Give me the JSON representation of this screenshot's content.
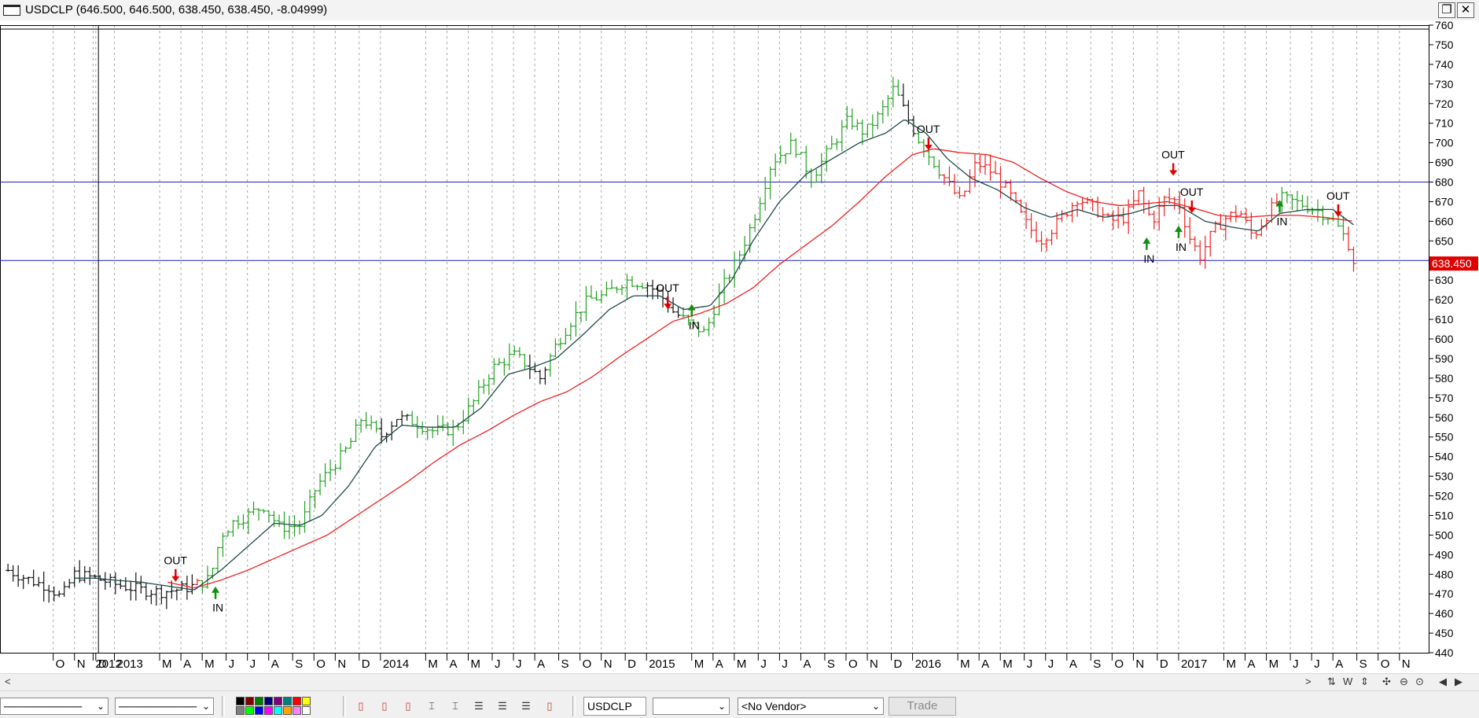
{
  "window": {
    "title": "USDCLP (646.500, 646.500, 638.450, 638.450, -8.04999)",
    "restore_glyph": "❐",
    "close_glyph": "✕"
  },
  "chart_data": {
    "type": "ohlc",
    "symbol": "USDCLP",
    "timeframe": "weekly",
    "ylim": [
      440,
      760
    ],
    "yticks": [
      440,
      450,
      460,
      470,
      480,
      490,
      500,
      510,
      520,
      530,
      540,
      550,
      560,
      570,
      580,
      590,
      600,
      610,
      620,
      630,
      640,
      650,
      660,
      670,
      680,
      690,
      700,
      710,
      720,
      730,
      740,
      750,
      760
    ],
    "last_price_label": "638.450",
    "last_price": 638.45,
    "xaxis_labels": [
      {
        "label": "2012",
        "x": 2012.92
      },
      {
        "label": "O",
        "x": 2012.77
      },
      {
        "label": "N",
        "x": 2012.85
      },
      {
        "label": "D",
        "x": 2012.93
      },
      {
        "label": "2013",
        "x": 2013.0
      },
      {
        "label": "M",
        "x": 2013.17
      },
      {
        "label": "A",
        "x": 2013.25
      },
      {
        "label": "M",
        "x": 2013.33
      },
      {
        "label": "J",
        "x": 2013.42
      },
      {
        "label": "J",
        "x": 2013.5
      },
      {
        "label": "A",
        "x": 2013.58
      },
      {
        "label": "S",
        "x": 2013.67
      },
      {
        "label": "O",
        "x": 2013.75
      },
      {
        "label": "N",
        "x": 2013.83
      },
      {
        "label": "D",
        "x": 2013.92
      },
      {
        "label": "2014",
        "x": 2014.0
      },
      {
        "label": "M",
        "x": 2014.17
      },
      {
        "label": "A",
        "x": 2014.25
      },
      {
        "label": "M",
        "x": 2014.33
      },
      {
        "label": "J",
        "x": 2014.42
      },
      {
        "label": "J",
        "x": 2014.5
      },
      {
        "label": "A",
        "x": 2014.58
      },
      {
        "label": "S",
        "x": 2014.67
      },
      {
        "label": "O",
        "x": 2014.75
      },
      {
        "label": "N",
        "x": 2014.83
      },
      {
        "label": "D",
        "x": 2014.92
      },
      {
        "label": "2015",
        "x": 2015.0
      },
      {
        "label": "M",
        "x": 2015.17
      },
      {
        "label": "A",
        "x": 2015.25
      },
      {
        "label": "M",
        "x": 2015.33
      },
      {
        "label": "J",
        "x": 2015.42
      },
      {
        "label": "J",
        "x": 2015.5
      },
      {
        "label": "A",
        "x": 2015.58
      },
      {
        "label": "S",
        "x": 2015.67
      },
      {
        "label": "O",
        "x": 2015.75
      },
      {
        "label": "N",
        "x": 2015.83
      },
      {
        "label": "D",
        "x": 2015.92
      },
      {
        "label": "2016",
        "x": 2016.0
      },
      {
        "label": "M",
        "x": 2016.17
      },
      {
        "label": "A",
        "x": 2016.25
      },
      {
        "label": "M",
        "x": 2016.33
      },
      {
        "label": "J",
        "x": 2016.42
      },
      {
        "label": "J",
        "x": 2016.5
      },
      {
        "label": "A",
        "x": 2016.58
      },
      {
        "label": "S",
        "x": 2016.67
      },
      {
        "label": "O",
        "x": 2016.75
      },
      {
        "label": "N",
        "x": 2016.83
      },
      {
        "label": "D",
        "x": 2016.92
      },
      {
        "label": "2017",
        "x": 2017.0
      },
      {
        "label": "M",
        "x": 2017.17
      },
      {
        "label": "A",
        "x": 2017.25
      },
      {
        "label": "M",
        "x": 2017.33
      },
      {
        "label": "J",
        "x": 2017.42
      },
      {
        "label": "J",
        "x": 2017.5
      },
      {
        "label": "A",
        "x": 2017.58
      },
      {
        "label": "S",
        "x": 2017.67
      },
      {
        "label": "O",
        "x": 2017.75
      },
      {
        "label": "N",
        "x": 2017.83
      }
    ],
    "close_keypoints": [
      [
        2012.6,
        482
      ],
      [
        2012.7,
        476
      ],
      [
        2012.75,
        474
      ],
      [
        2012.8,
        468
      ],
      [
        2012.85,
        480
      ],
      [
        2012.93,
        478
      ],
      [
        2013.0,
        475
      ],
      [
        2013.1,
        472
      ],
      [
        2013.17,
        471
      ],
      [
        2013.23,
        472
      ],
      [
        2013.3,
        474
      ],
      [
        2013.36,
        478
      ],
      [
        2013.4,
        500
      ],
      [
        2013.45,
        507
      ],
      [
        2013.5,
        510
      ],
      [
        2013.56,
        515
      ],
      [
        2013.62,
        504
      ],
      [
        2013.7,
        505
      ],
      [
        2013.76,
        525
      ],
      [
        2013.82,
        535
      ],
      [
        2013.88,
        545
      ],
      [
        2013.93,
        560
      ],
      [
        2014.0,
        550
      ],
      [
        2014.06,
        560
      ],
      [
        2014.12,
        558
      ],
      [
        2014.2,
        553
      ],
      [
        2014.28,
        554
      ],
      [
        2014.35,
        568
      ],
      [
        2014.42,
        585
      ],
      [
        2014.5,
        592
      ],
      [
        2014.55,
        587
      ],
      [
        2014.6,
        580
      ],
      [
        2014.66,
        597
      ],
      [
        2014.72,
        610
      ],
      [
        2014.78,
        620
      ],
      [
        2014.84,
        622
      ],
      [
        2014.92,
        630
      ],
      [
        2015.0,
        628
      ],
      [
        2015.05,
        623
      ],
      [
        2015.1,
        614
      ],
      [
        2015.16,
        608
      ],
      [
        2015.22,
        603
      ],
      [
        2015.28,
        625
      ],
      [
        2015.34,
        640
      ],
      [
        2015.4,
        660
      ],
      [
        2015.47,
        690
      ],
      [
        2015.55,
        700
      ],
      [
        2015.62,
        682
      ],
      [
        2015.68,
        695
      ],
      [
        2015.76,
        712
      ],
      [
        2015.82,
        705
      ],
      [
        2015.88,
        715
      ],
      [
        2015.93,
        728
      ],
      [
        2015.98,
        713
      ],
      [
        2016.03,
        700
      ],
      [
        2016.08,
        690
      ],
      [
        2016.13,
        680
      ],
      [
        2016.18,
        670
      ],
      [
        2016.24,
        690
      ],
      [
        2016.3,
        685
      ],
      [
        2016.36,
        675
      ],
      [
        2016.42,
        660
      ],
      [
        2016.48,
        650
      ],
      [
        2016.55,
        660
      ],
      [
        2016.62,
        672
      ],
      [
        2016.68,
        667
      ],
      [
        2016.74,
        660
      ],
      [
        2016.8,
        662
      ],
      [
        2016.85,
        674
      ],
      [
        2016.9,
        660
      ],
      [
        2016.95,
        672
      ],
      [
        2017.0,
        670
      ],
      [
        2017.04,
        652
      ],
      [
        2017.08,
        642
      ],
      [
        2017.13,
        655
      ],
      [
        2017.18,
        662
      ],
      [
        2017.23,
        665
      ],
      [
        2017.28,
        652
      ],
      [
        2017.33,
        663
      ],
      [
        2017.38,
        672
      ],
      [
        2017.43,
        670
      ],
      [
        2017.48,
        668
      ],
      [
        2017.53,
        665
      ],
      [
        2017.57,
        662
      ],
      [
        2017.61,
        655
      ],
      [
        2017.64,
        648
      ],
      [
        2017.66,
        638.45
      ]
    ],
    "fast_ma_keypoints": [
      [
        2012.85,
        478
      ],
      [
        2012.93,
        478
      ],
      [
        2013.0,
        477
      ],
      [
        2013.1,
        476
      ],
      [
        2013.2,
        474
      ],
      [
        2013.3,
        472
      ],
      [
        2013.4,
        482
      ],
      [
        2013.5,
        494
      ],
      [
        2013.6,
        506
      ],
      [
        2013.7,
        505
      ],
      [
        2013.78,
        510
      ],
      [
        2013.88,
        525
      ],
      [
        2013.98,
        545
      ],
      [
        2014.08,
        556
      ],
      [
        2014.18,
        555
      ],
      [
        2014.28,
        555
      ],
      [
        2014.38,
        565
      ],
      [
        2014.48,
        582
      ],
      [
        2014.56,
        585
      ],
      [
        2014.66,
        590
      ],
      [
        2014.76,
        602
      ],
      [
        2014.86,
        615
      ],
      [
        2014.95,
        622
      ],
      [
        2015.05,
        622
      ],
      [
        2015.14,
        615
      ],
      [
        2015.24,
        617
      ],
      [
        2015.32,
        630
      ],
      [
        2015.4,
        650
      ],
      [
        2015.5,
        670
      ],
      [
        2015.6,
        684
      ],
      [
        2015.7,
        692
      ],
      [
        2015.8,
        700
      ],
      [
        2015.9,
        705
      ],
      [
        2015.97,
        712
      ],
      [
        2016.05,
        705
      ],
      [
        2016.13,
        692
      ],
      [
        2016.22,
        682
      ],
      [
        2016.32,
        676
      ],
      [
        2016.42,
        667
      ],
      [
        2016.52,
        662
      ],
      [
        2016.62,
        666
      ],
      [
        2016.72,
        662
      ],
      [
        2016.82,
        664
      ],
      [
        2016.92,
        668
      ],
      [
        2017.0,
        668
      ],
      [
        2017.1,
        660
      ],
      [
        2017.2,
        657
      ],
      [
        2017.3,
        655
      ],
      [
        2017.38,
        664
      ],
      [
        2017.48,
        666
      ],
      [
        2017.58,
        666
      ],
      [
        2017.66,
        658
      ]
    ],
    "slow_ma_keypoints": [
      [
        2013.2,
        476
      ],
      [
        2013.3,
        473
      ],
      [
        2013.4,
        477
      ],
      [
        2013.5,
        482
      ],
      [
        2013.6,
        488
      ],
      [
        2013.7,
        494
      ],
      [
        2013.8,
        500
      ],
      [
        2013.9,
        509
      ],
      [
        2014.0,
        518
      ],
      [
        2014.1,
        527
      ],
      [
        2014.2,
        537
      ],
      [
        2014.3,
        546
      ],
      [
        2014.4,
        553
      ],
      [
        2014.5,
        561
      ],
      [
        2014.6,
        568
      ],
      [
        2014.7,
        573
      ],
      [
        2014.8,
        581
      ],
      [
        2014.9,
        591
      ],
      [
        2015.0,
        600
      ],
      [
        2015.1,
        609
      ],
      [
        2015.2,
        613
      ],
      [
        2015.3,
        618
      ],
      [
        2015.4,
        626
      ],
      [
        2015.5,
        638
      ],
      [
        2015.6,
        648
      ],
      [
        2015.7,
        658
      ],
      [
        2015.8,
        670
      ],
      [
        2015.9,
        683
      ],
      [
        2016.0,
        694
      ],
      [
        2016.08,
        697
      ],
      [
        2016.18,
        695
      ],
      [
        2016.28,
        694
      ],
      [
        2016.38,
        690
      ],
      [
        2016.48,
        682
      ],
      [
        2016.58,
        675
      ],
      [
        2016.68,
        670
      ],
      [
        2016.78,
        668
      ],
      [
        2016.88,
        669
      ],
      [
        2016.96,
        670
      ],
      [
        2017.05,
        667
      ],
      [
        2017.15,
        663
      ],
      [
        2017.25,
        662
      ],
      [
        2017.35,
        663
      ],
      [
        2017.45,
        663
      ],
      [
        2017.55,
        662
      ],
      [
        2017.66,
        660
      ]
    ],
    "horizontal_lines": [
      680,
      640,
      758
    ],
    "vertical_marker_x": 2012.94,
    "signals": [
      {
        "label": "OUT",
        "x": 2013.23,
        "price": 477,
        "dir": "down"
      },
      {
        "label": "IN",
        "x": 2013.38,
        "price": 473,
        "dir": "up"
      },
      {
        "label": "OUT",
        "x": 2015.08,
        "price": 616,
        "dir": "down"
      },
      {
        "label": "IN",
        "x": 2015.17,
        "price": 617,
        "dir": "up"
      },
      {
        "label": "OUT",
        "x": 2016.06,
        "price": 697,
        "dir": "down"
      },
      {
        "label": "IN",
        "x": 2016.88,
        "price": 651,
        "dir": "up"
      },
      {
        "label": "OUT",
        "x": 2016.98,
        "price": 684,
        "dir": "down"
      },
      {
        "label": "IN",
        "x": 2017.0,
        "price": 657,
        "dir": "up"
      },
      {
        "label": "OUT",
        "x": 2017.05,
        "price": 665,
        "dir": "down"
      },
      {
        "label": "IN",
        "x": 2017.38,
        "price": 670,
        "dir": "up"
      },
      {
        "label": "OUT",
        "x": 2017.6,
        "price": 663,
        "dir": "down"
      }
    ],
    "colors": {
      "up_bar": "#22a022",
      "down_bar": "#ee2020",
      "neutral_bar": "#111111",
      "fast_ma": "#1f4a4a",
      "slow_ma": "#ee2020",
      "hline": "#2020c0",
      "grid": "#a8a8a8",
      "price_tag_bg": "#e00000",
      "price_tag_text": "#ffffff"
    }
  },
  "scroll": {
    "left_arrow": "<",
    "right_arrow": ">",
    "right_tools": [
      "⇅",
      "W",
      "⇕",
      "✣",
      "⊖",
      "⊙"
    ],
    "nav_left": "◀",
    "nav_right": "▶"
  },
  "toolbar": {
    "line_style_1": "──────────",
    "line_style_2": "──────────",
    "symbol": "USDCLP",
    "period_combo": "",
    "vendor": "<No Vendor>",
    "trade_label": "Trade",
    "combo_arrow": "⌄",
    "colors": [
      "#000000",
      "#7f0000",
      "#007f00",
      "#00007f",
      "#7f007f",
      "#007f7f",
      "#ff0000",
      "#ffff00",
      "#7f7f7f",
      "#00ff00",
      "#0000ff",
      "#ff00ff",
      "#00ffff",
      "#ffa500",
      "#ff7fff",
      "#ffffff"
    ]
  }
}
